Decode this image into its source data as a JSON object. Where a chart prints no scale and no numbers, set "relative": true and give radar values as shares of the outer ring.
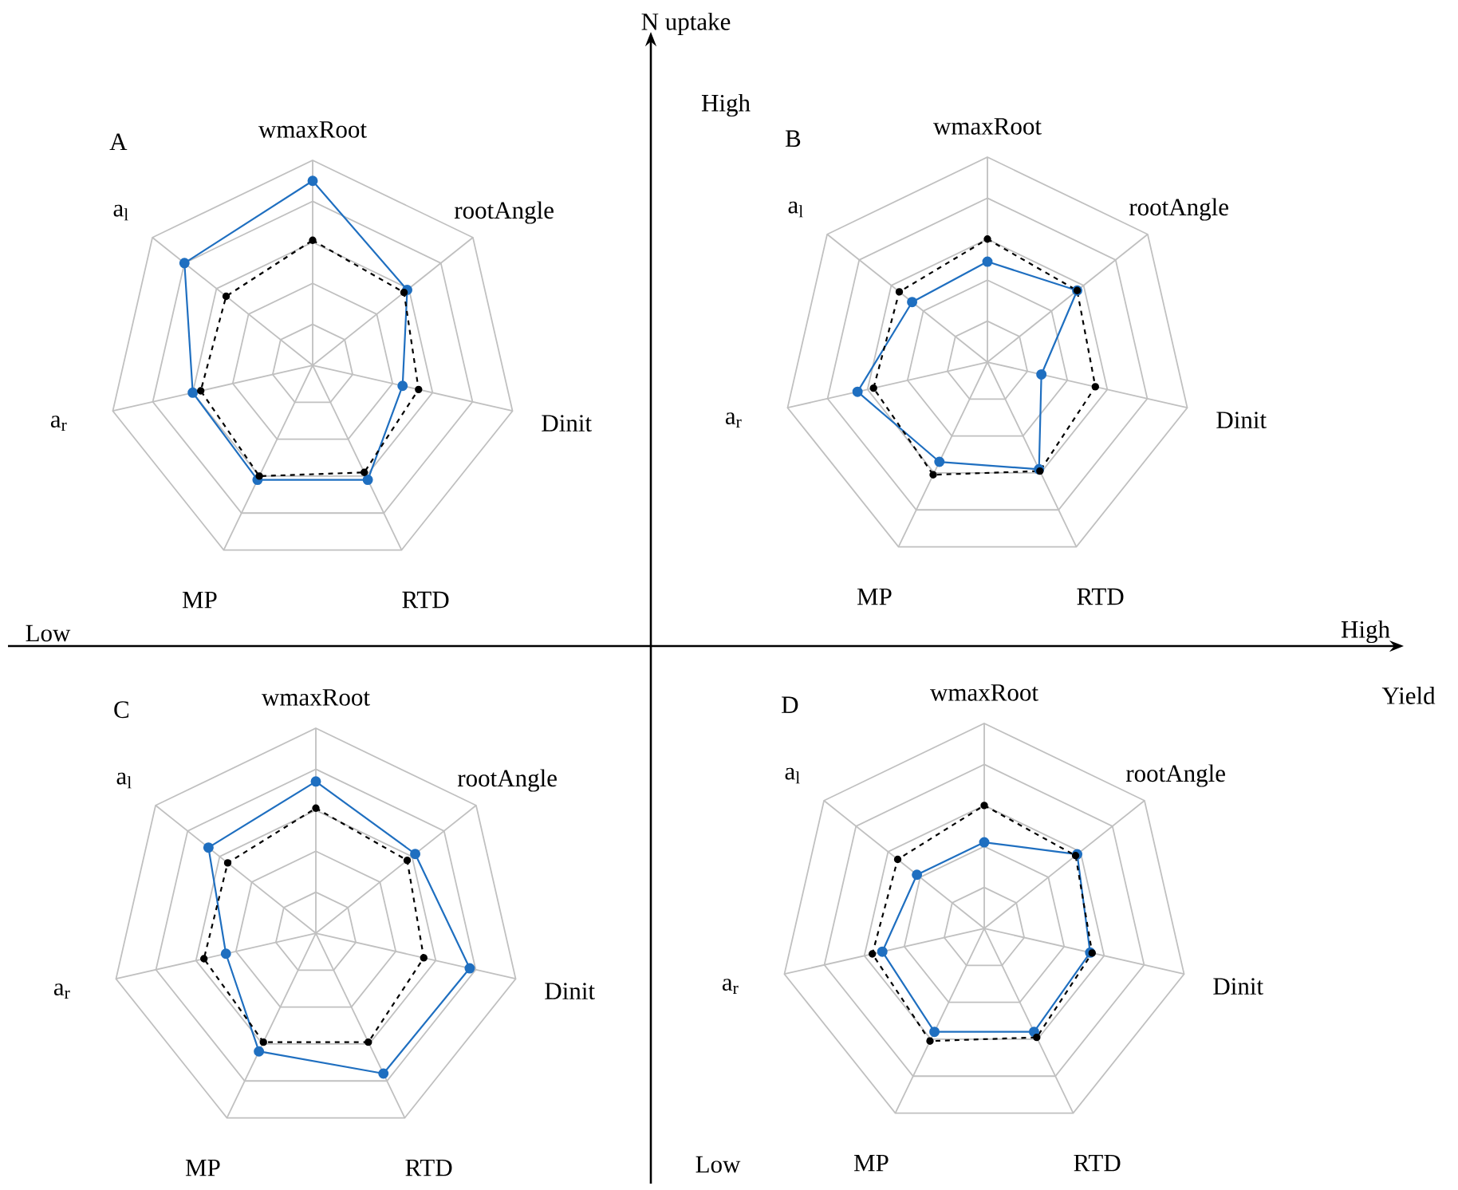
{
  "chart_data": [
    {
      "type": "radar",
      "title": "A",
      "categories": [
        "wmaxRoot",
        "rootAngle",
        "Dinit",
        "RTD",
        "MP",
        "a$_{r}$",
        "a$_{l}$"
      ],
      "relative": true,
      "marker": "circle",
      "series": [
        {
          "color": "#1f6fc0",
          "line_style": "solid",
          "values": [
            0.9,
            0.59,
            0.45,
            0.62,
            0.62,
            0.6,
            0.8
          ]
        },
        {
          "color": "#000000",
          "line_style": "dashed",
          "values": [
            0.61,
            0.57,
            0.53,
            0.58,
            0.6,
            0.56,
            0.54
          ]
        }
      ]
    },
    {
      "type": "radar",
      "title": "B",
      "categories": [
        "wmaxRoot",
        "rootAngle",
        "Dinit",
        "RTD",
        "MP",
        "a$_{r}$",
        "a$_{l}$"
      ],
      "relative": true,
      "marker": "circle",
      "series": [
        {
          "color": "#1f6fc0",
          "line_style": "solid",
          "values": [
            0.49,
            0.56,
            0.27,
            0.58,
            0.54,
            0.65,
            0.47
          ]
        },
        {
          "color": "#000000",
          "line_style": "dashed",
          "values": [
            0.6,
            0.56,
            0.54,
            0.59,
            0.61,
            0.57,
            0.55
          ]
        }
      ]
    },
    {
      "type": "radar",
      "title": "C",
      "categories": [
        "wmaxRoot",
        "rootAngle",
        "Dinit",
        "RTD",
        "MP",
        "a$_{r}$",
        "a$_{l}$"
      ],
      "relative": true,
      "marker": "circle",
      "series": [
        {
          "color": "#1f6fc0",
          "line_style": "solid",
          "values": [
            0.74,
            0.62,
            0.77,
            0.76,
            0.64,
            0.45,
            0.67
          ]
        },
        {
          "color": "#000000",
          "line_style": "dashed",
          "values": [
            0.61,
            0.57,
            0.54,
            0.59,
            0.59,
            0.56,
            0.55
          ]
        }
      ]
    },
    {
      "type": "radar",
      "title": "D",
      "categories": [
        "wmaxRoot",
        "rootAngle",
        "Dinit",
        "RTD",
        "MP",
        "a$_{r}$",
        "a$_{l}$"
      ],
      "relative": true,
      "marker": "circle",
      "series": [
        {
          "color": "#1f6fc0",
          "line_style": "solid",
          "values": [
            0.42,
            0.58,
            0.53,
            0.56,
            0.56,
            0.51,
            0.42
          ]
        },
        {
          "color": "#000000",
          "line_style": "dashed",
          "values": [
            0.6,
            0.57,
            0.54,
            0.59,
            0.61,
            0.56,
            0.54
          ]
        }
      ]
    },
    {
      "type": "other",
      "xlabel": "Yield",
      "ylabel": "N uptake",
      "annotations": [
        "High",
        "Low",
        "High",
        "Low"
      ]
    }
  ]
}
